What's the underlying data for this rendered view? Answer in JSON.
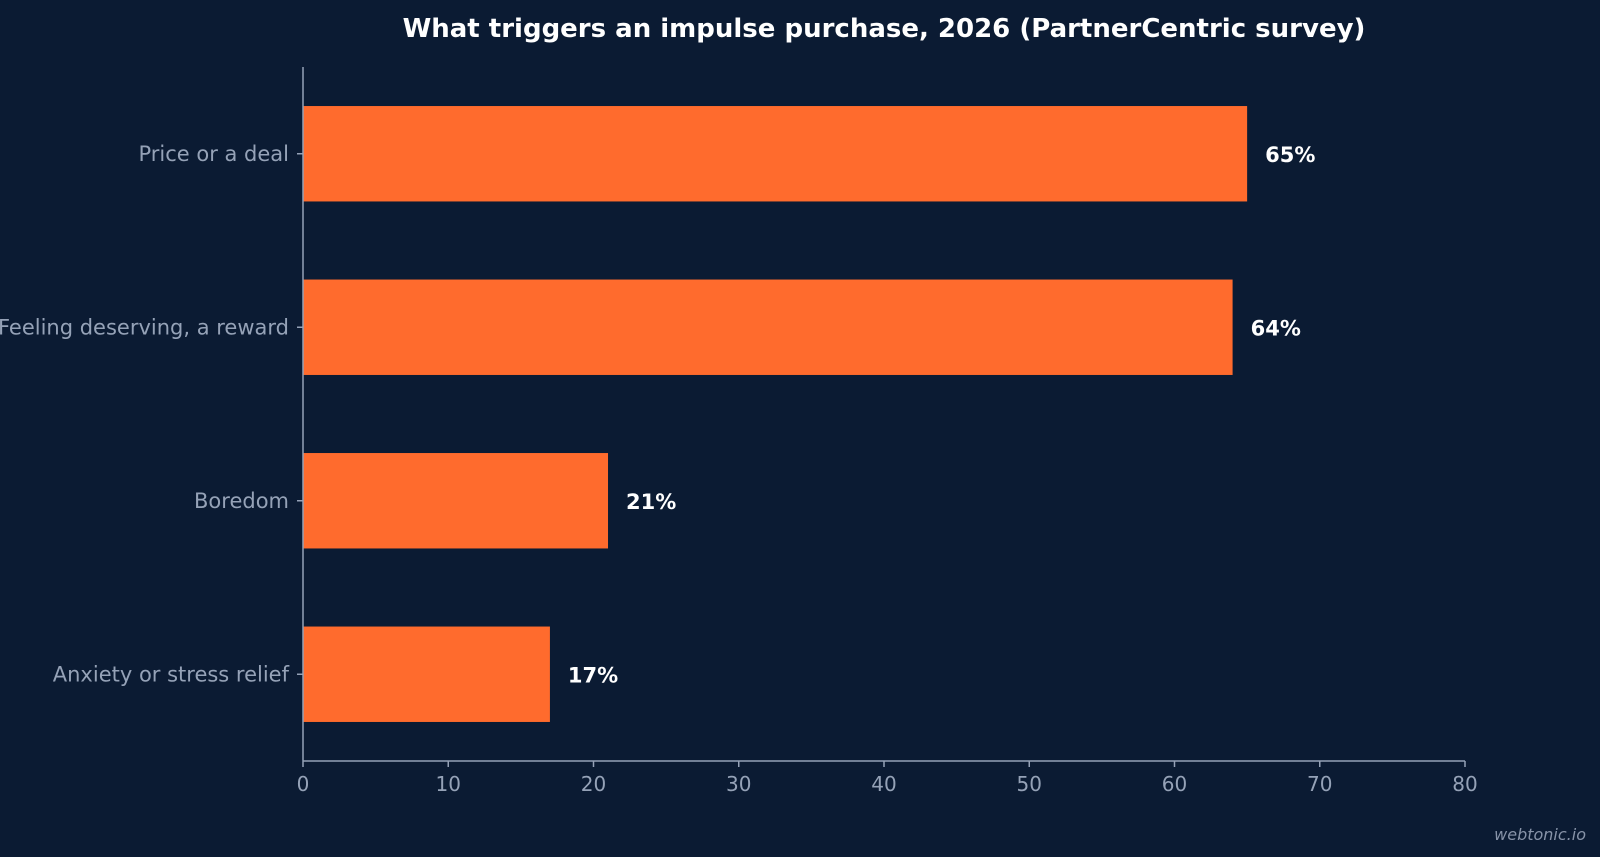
{
  "chart_data": {
    "type": "bar",
    "orientation": "horizontal",
    "title": "What triggers an impulse purchase, 2026 (PartnerCentric survey)",
    "categories": [
      "Price or a deal",
      "Feeling deserving, a reward",
      "Boredom",
      "Anxiety or stress relief"
    ],
    "values": [
      65,
      64,
      21,
      17
    ],
    "value_labels": [
      "65%",
      "64%",
      "21%",
      "17%"
    ],
    "xlim": [
      0,
      80
    ],
    "xticks": [
      0,
      10,
      20,
      30,
      40,
      50,
      60,
      70,
      80
    ],
    "xlabel": "",
    "ylabel": "",
    "grid": false,
    "bar_color": "#ff6b2d",
    "background_color": "#0b1b33"
  },
  "watermark": "webtonic.io"
}
